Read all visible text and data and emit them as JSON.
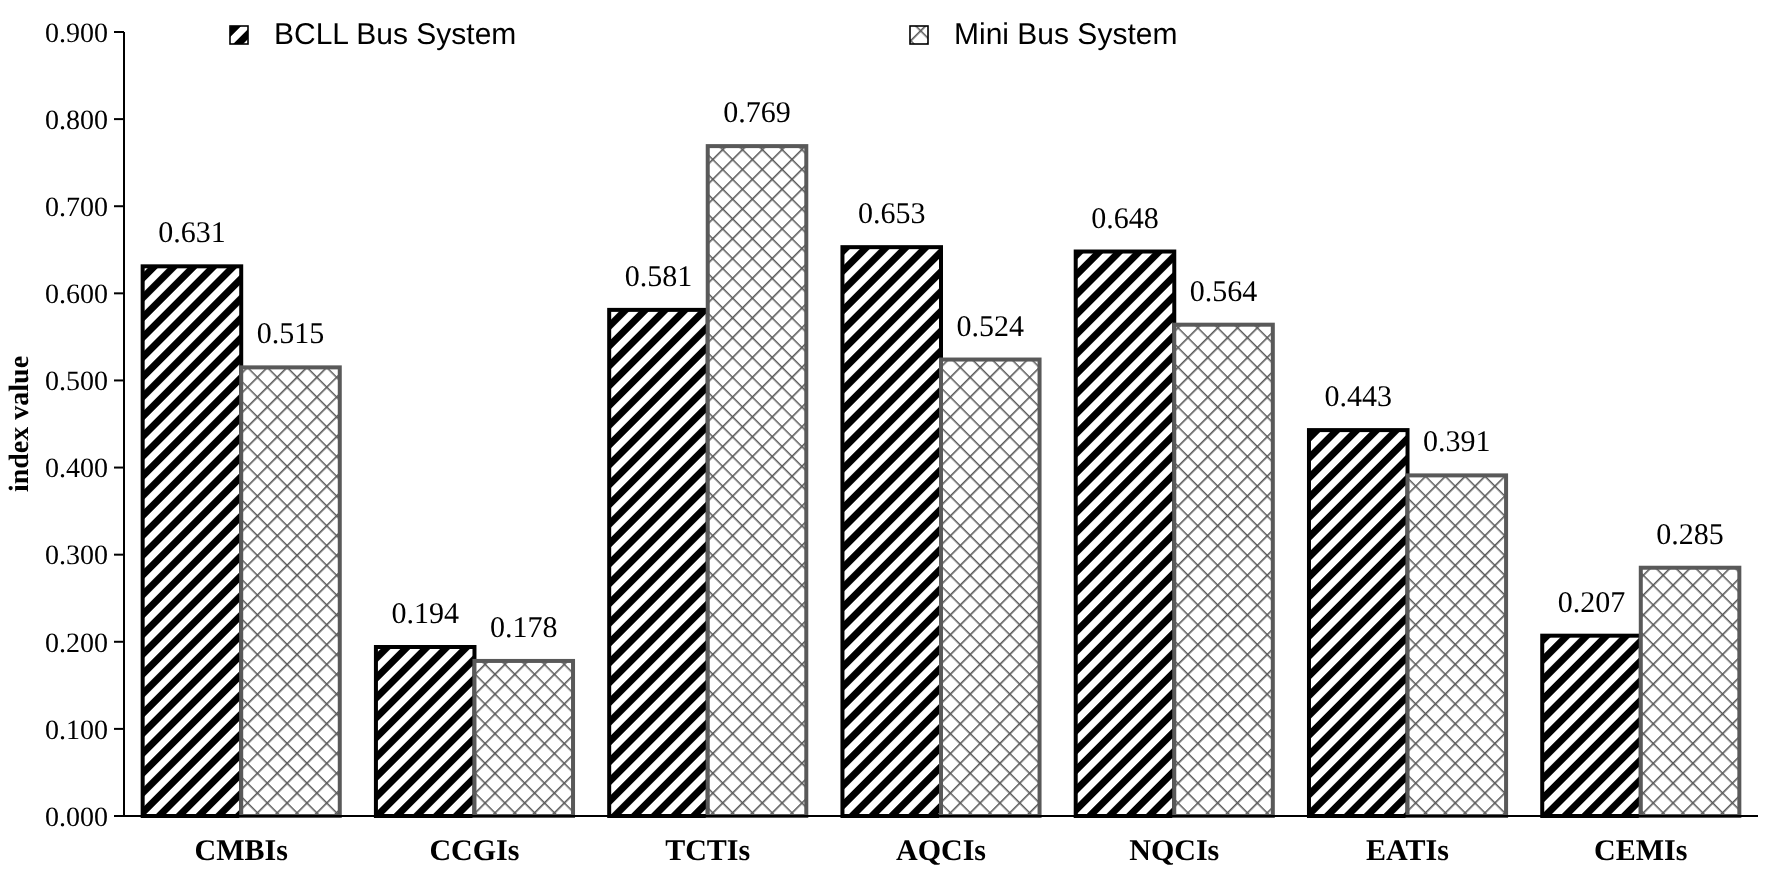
{
  "chart_data": {
    "type": "bar",
    "ylabel": "index value",
    "categories": [
      "CMBIs",
      "CCGIs",
      "TCTIs",
      "AQCIs",
      "NQCIs",
      "EATIs",
      "CEMIs"
    ],
    "series": [
      {
        "name": "BCLL Bus System",
        "color": "#000000",
        "values": [
          0.631,
          0.194,
          0.581,
          0.653,
          0.648,
          0.443,
          0.207
        ]
      },
      {
        "name": "Mini Bus System",
        "color": "#595959",
        "values": [
          0.515,
          0.178,
          0.769,
          0.524,
          0.564,
          0.391,
          0.285
        ]
      }
    ],
    "ylim": [
      0,
      0.9
    ],
    "yticks": [
      {
        "value": 0,
        "label": "0.000"
      },
      {
        "value": 0.1,
        "label": "0.100"
      },
      {
        "value": 0.2,
        "label": "0.200"
      },
      {
        "value": 0.3,
        "label": "0.300"
      },
      {
        "value": 0.4,
        "label": "0.400"
      },
      {
        "value": 0.5,
        "label": "0.500"
      },
      {
        "value": 0.6,
        "label": "0.600"
      },
      {
        "value": 0.7,
        "label": "0.700"
      },
      {
        "value": 0.8,
        "label": "0.800"
      },
      {
        "value": 0.9,
        "label": "0.900"
      }
    ],
    "data_labels": true,
    "legend": "top",
    "grid": false
  }
}
